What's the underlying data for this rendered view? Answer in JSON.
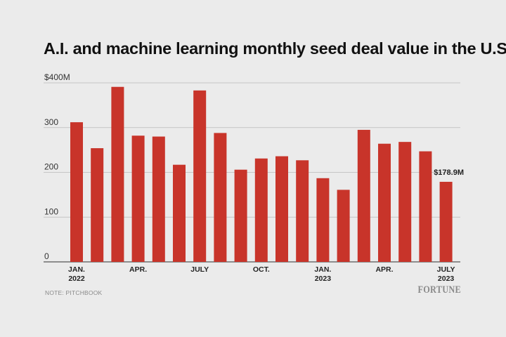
{
  "chart_data": {
    "type": "bar",
    "title": "A.I. and machine learning monthly seed deal value in the U.S.",
    "y_tick_labels": [
      "0",
      "100",
      "200",
      "300",
      "$400M"
    ],
    "y_ticks": [
      0,
      100,
      200,
      300,
      400
    ],
    "ylim": [
      0,
      400
    ],
    "grid": true,
    "categories": [
      "Jan 2022",
      "Feb 2022",
      "Mar 2022",
      "Apr 2022",
      "May 2022",
      "Jun 2022",
      "Jul 2022",
      "Aug 2022",
      "Sep 2022",
      "Oct 2022",
      "Nov 2022",
      "Dec 2022",
      "Jan 2023",
      "Feb 2023",
      "Mar 2023",
      "Apr 2023",
      "May 2023",
      "Jun 2023",
      "Jul 2023"
    ],
    "values": [
      312,
      254,
      391,
      282,
      280,
      217,
      383,
      288,
      206,
      231,
      236,
      227,
      187,
      161,
      295,
      264,
      268,
      247,
      178.9
    ],
    "x_tick_labels": [
      {
        "index": 0,
        "line1": "JAN.",
        "line2": "2022"
      },
      {
        "index": 3,
        "line1": "APR.",
        "line2": ""
      },
      {
        "index": 6,
        "line1": "JULY",
        "line2": ""
      },
      {
        "index": 9,
        "line1": "OCT.",
        "line2": ""
      },
      {
        "index": 12,
        "line1": "JAN.",
        "line2": "2023"
      },
      {
        "index": 15,
        "line1": "APR.",
        "line2": ""
      },
      {
        "index": 18,
        "line1": "JULY",
        "line2": "2023"
      }
    ],
    "annotations": [
      {
        "index": 18,
        "text": "$178.9M"
      }
    ],
    "bar_color": "#c8342a"
  },
  "note": "NOTE: PITCHBOOK",
  "logo_text": "FORTUNE"
}
